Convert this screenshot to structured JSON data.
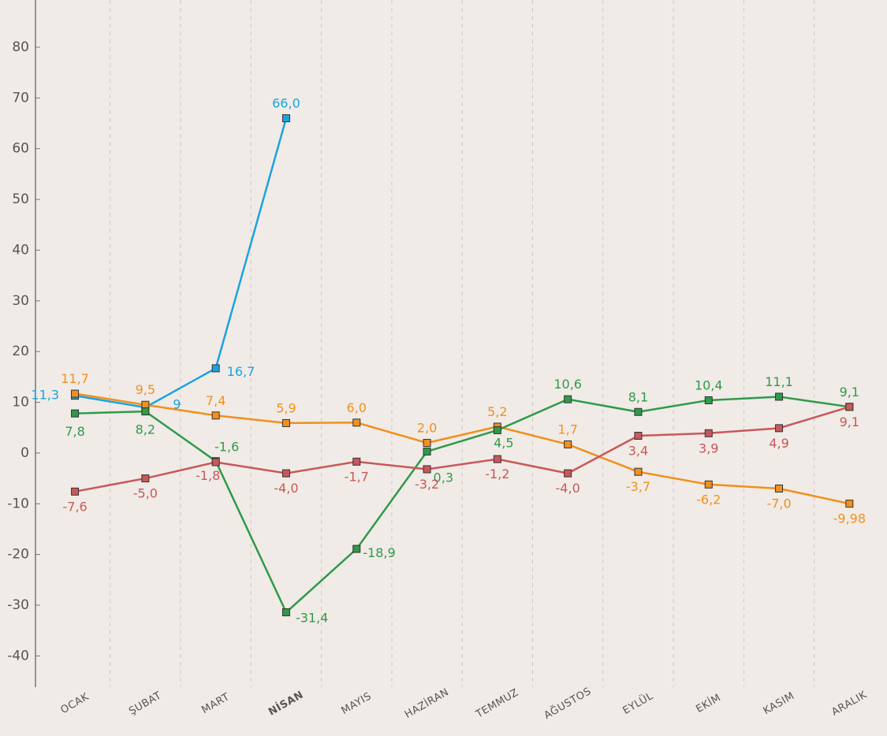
{
  "chart_data": {
    "type": "line",
    "categories": [
      "OCAK",
      "ŞUBAT",
      "MART",
      "NİSAN",
      "MAYIS",
      "HAZİRAN",
      "TEMMUZ",
      "AĞUSTOS",
      "EYLÜL",
      "EKİM",
      "KASIM",
      "ARALIK"
    ],
    "highlight_index": 3,
    "ylim": [
      -46,
      89
    ],
    "yticks": [
      -40,
      -30,
      -20,
      -10,
      0,
      10,
      20,
      30,
      40,
      50,
      60,
      70,
      80
    ],
    "series": [
      {
        "color": "#1aa3e0",
        "values": [
          11.3,
          9,
          16.7,
          66.0,
          null,
          null,
          null,
          null,
          null,
          null,
          null,
          null
        ],
        "value_labels": [
          "11,3",
          "9",
          "16,7",
          "66,0",
          null,
          null,
          null,
          null,
          null,
          null,
          null,
          null
        ]
      },
      {
        "color": "#f0901e",
        "values": [
          11.7,
          9.5,
          7.4,
          5.9,
          6.0,
          2.0,
          5.2,
          1.7,
          -3.7,
          -6.2,
          -7.0,
          -9.98
        ],
        "value_labels": [
          "11,7",
          "9,5",
          "7,4",
          "5,9",
          "6,0",
          "2,0",
          "5,2",
          "1,7",
          "-3,7",
          "-6,2",
          "-7,0",
          "-9,98"
        ]
      },
      {
        "color": "#2e9a4a",
        "values": [
          7.8,
          8.2,
          -1.6,
          -31.4,
          -18.9,
          0.3,
          4.5,
          10.6,
          8.1,
          10.4,
          11.1,
          9.1
        ],
        "value_labels": [
          "7,8",
          "8,2",
          "-1,6",
          "-31,4",
          "-18,9",
          "0,3",
          "4,5",
          "10,6",
          "8,1",
          "10,4",
          "11,1",
          "9,1"
        ]
      },
      {
        "color": "#c8585a",
        "values": [
          -7.6,
          -5.0,
          -1.8,
          -4.0,
          -1.7,
          -3.2,
          -1.2,
          -4.0,
          3.4,
          3.9,
          4.9,
          9.1
        ],
        "value_labels": [
          "-7,6",
          "-5,0",
          "-1,8",
          "-4,0",
          "-1,7",
          "-3,2",
          "-1,2",
          "-4,0",
          "3,4",
          "3,9",
          "4,9",
          "9,1"
        ]
      }
    ]
  }
}
